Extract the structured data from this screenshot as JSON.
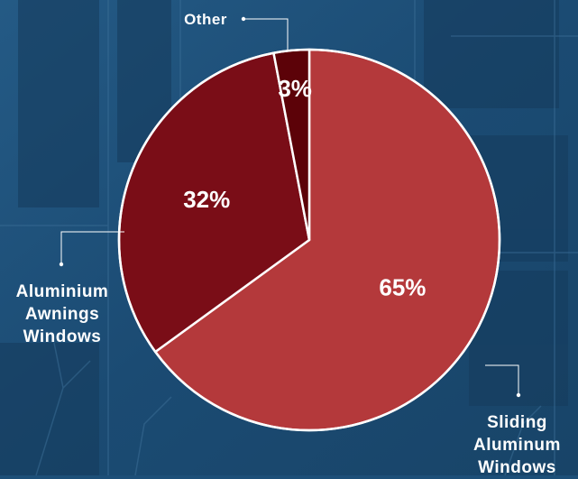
{
  "chart_data": {
    "type": "pie",
    "title": "",
    "slices": [
      {
        "label": "Sliding Aluminum Windows",
        "lines": [
          "Sliding",
          "Aluminum",
          "Windows"
        ],
        "value": 65,
        "display": "65%",
        "color": "#b4393b"
      },
      {
        "label": "Aluminium Awnings Windows",
        "lines": [
          "Aluminium",
          "Awnings",
          "Windows"
        ],
        "value": 32,
        "display": "32%",
        "color": "#7a0d17"
      },
      {
        "label": "Other",
        "lines": [
          "Other"
        ],
        "value": 3,
        "display": "3%",
        "color": "#5c0208"
      }
    ],
    "start_angle": "12 o'clock, clockwise",
    "background": "blue-toned photo of apartment building facade",
    "colors": {
      "background": "#1d4f78",
      "separator": "#ffffff",
      "text": "#ffffff"
    }
  }
}
